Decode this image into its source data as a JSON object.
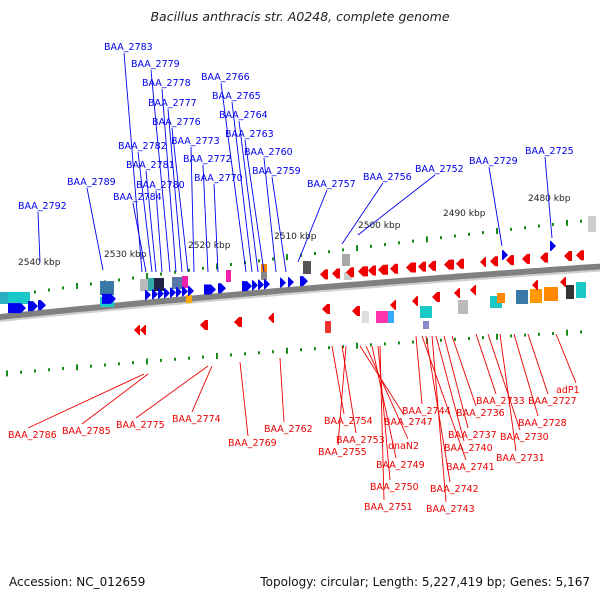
{
  "title": "Bacillus anthracis str. A0248, complete genome",
  "footer": {
    "accession": "Accession: NC_012659",
    "summary": "Topology: circular; Length: 5,227,419 bp; Genes: 5,167"
  },
  "colors": {
    "forward_gene": "#0000ee",
    "reverse_gene": "#ee0000",
    "backbone": "#808080",
    "tick": "#1a8a1a",
    "label_text": "#222222"
  },
  "ruler_labels": [
    "2540 kbp",
    "2530 kbp",
    "2520 kbp",
    "2510 kbp",
    "2500 kbp",
    "2490 kbp",
    "2480 kbp"
  ],
  "forward_labels": [
    "BAA_2792",
    "BAA_2789",
    "BAA_2784",
    "BAA_2782",
    "BAA_2781",
    "BAA_2780",
    "BAA_2783",
    "BAA_2779",
    "BAA_2778",
    "BAA_2777",
    "BAA_2776",
    "BAA_2773",
    "BAA_2772",
    "BAA_2770",
    "BAA_2766",
    "BAA_2765",
    "BAA_2764",
    "BAA_2763",
    "BAA_2760",
    "BAA_2759",
    "BAA_2757",
    "BAA_2756",
    "BAA_2752",
    "BAA_2729",
    "BAA_2725"
  ],
  "reverse_labels": [
    "BAA_2786",
    "BAA_2785",
    "BAA_2775",
    "BAA_2774",
    "BAA_2769",
    "BAA_2762",
    "BAA_2754",
    "BAA_2753",
    "BAA_2755",
    "BAA_2747",
    "dnaN2",
    "BAA_2749",
    "BAA_2750",
    "BAA_2751",
    "BAA_2744",
    "BAA_2741",
    "BAA_2742",
    "BAA_2743",
    "BAA_2740",
    "BAA_2737",
    "BAA_2736",
    "BAA_2733",
    "BAA_2730",
    "BAA_2731",
    "BAA_2728",
    "BAA_2727",
    "adP1"
  ]
}
